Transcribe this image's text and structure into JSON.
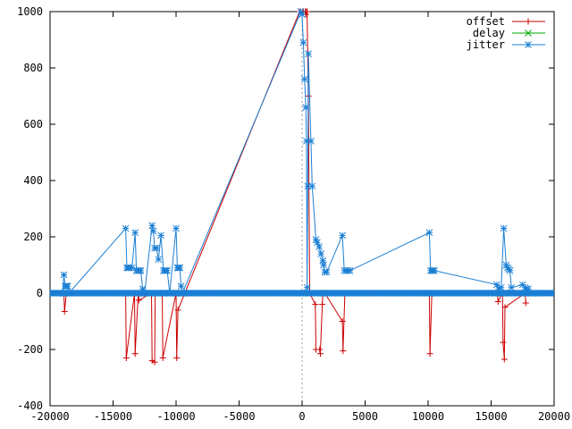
{
  "chart_data": {
    "type": "line",
    "title": "",
    "xlabel": "",
    "ylabel": "",
    "xlim": [
      -20000,
      20000
    ],
    "ylim": [
      -400,
      1000
    ],
    "xticks": [
      -20000,
      -15000,
      -10000,
      -5000,
      0,
      5000,
      10000,
      15000,
      20000
    ],
    "yticks": [
      -400,
      -200,
      0,
      200,
      400,
      600,
      800,
      1000
    ],
    "grid": false,
    "zero_line_x": 0,
    "legend_position": "top-right",
    "series": [
      {
        "name": "offset",
        "color": "#cc0000",
        "marker": "plus",
        "x": [
          -18900,
          -18850,
          -18700,
          -14000,
          -13950,
          -13300,
          -13250,
          -13000,
          -12950,
          -11950,
          -11900,
          -11700,
          -11650,
          -11100,
          -11050,
          -10000,
          -9950,
          -9850,
          -200,
          50,
          100,
          250,
          300,
          350,
          400,
          500,
          600,
          1050,
          1100,
          1400,
          1450,
          1600,
          1650,
          1800,
          3200,
          3250,
          3400,
          10100,
          10150,
          10300,
          15500,
          15550,
          15900,
          15950,
          16050,
          16100,
          17700,
          17750
        ],
        "y": [
          0,
          -65,
          0,
          0,
          -230,
          0,
          -215,
          0,
          -25,
          0,
          -240,
          -245,
          0,
          0,
          -230,
          0,
          -230,
          -60,
          1000,
          1000,
          1000,
          1000,
          990,
          1000,
          1000,
          700,
          0,
          -40,
          -200,
          -200,
          -215,
          -40,
          0,
          0,
          -100,
          -205,
          0,
          0,
          -215,
          0,
          0,
          -30,
          0,
          -175,
          -235,
          -50,
          0,
          -35
        ]
      },
      {
        "name": "delay",
        "color": "#00aa00",
        "marker": "cross",
        "x": [
          -18900,
          -18700,
          -14000,
          -13000,
          -11700,
          -11000,
          -10000,
          -9600,
          100,
          600,
          1500,
          1800,
          3400,
          10200,
          15800,
          16100,
          17800
        ],
        "y": [
          0,
          0,
          0,
          0,
          0,
          0,
          0,
          0,
          0,
          0,
          0,
          0,
          0,
          0,
          0,
          0,
          0
        ]
      },
      {
        "name": "jitter",
        "color": "#1a7fd4",
        "marker": "star",
        "x": [
          -19000,
          -18900,
          -18800,
          -18700,
          -18600,
          -18500,
          -14000,
          -13900,
          -13800,
          -13700,
          -13500,
          -13250,
          -13150,
          -13050,
          -12900,
          -12800,
          -12650,
          -12500,
          -11900,
          -11800,
          -11700,
          -11550,
          -11400,
          -11200,
          -11000,
          -10900,
          -10800,
          -10700,
          -10500,
          -10000,
          -9900,
          -9800,
          -9700,
          -9600,
          -9500,
          -100,
          0,
          100,
          200,
          300,
          350,
          400,
          450,
          500,
          700,
          800,
          1100,
          1200,
          1350,
          1500,
          1650,
          1700,
          1800,
          1950,
          3200,
          3350,
          3500,
          3650,
          3800,
          10100,
          10200,
          10300,
          10400,
          10500,
          15450,
          15600,
          15800,
          16000,
          16200,
          16300,
          16400,
          16500,
          16600,
          17500,
          17700,
          17800,
          17950
        ],
        "y": [
          0,
          65,
          25,
          25,
          25,
          0,
          230,
          90,
          90,
          90,
          90,
          215,
          80,
          80,
          80,
          80,
          15,
          0,
          240,
          220,
          160,
          160,
          120,
          205,
          80,
          80,
          80,
          80,
          0,
          230,
          90,
          90,
          90,
          25,
          0,
          1000,
          990,
          890,
          760,
          660,
          540,
          20,
          380,
          850,
          540,
          380,
          190,
          180,
          165,
          140,
          115,
          100,
          75,
          75,
          205,
          80,
          80,
          80,
          80,
          215,
          80,
          80,
          80,
          80,
          30,
          15,
          20,
          230,
          100,
          90,
          85,
          80,
          20,
          30,
          20,
          15,
          15
        ]
      }
    ]
  }
}
